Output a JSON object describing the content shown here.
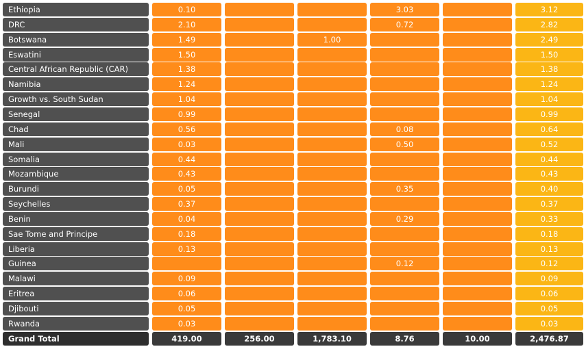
{
  "chart_data": {
    "type": "table",
    "colors": {
      "label_cell": "#505050",
      "value_cell": "#ff8c1a",
      "total_cell": "#fbb615",
      "grand_total_row": "#3a3a3a"
    },
    "rows": [
      {
        "name": "Ethiopia",
        "values": [
          "0.10",
          "",
          "",
          "3.03",
          "",
          "3.12"
        ]
      },
      {
        "name": "DRC",
        "values": [
          "2.10",
          "",
          "",
          "0.72",
          "",
          "2.82"
        ]
      },
      {
        "name": "Botswana",
        "values": [
          "1.49",
          "",
          "1.00",
          "",
          "",
          "2.49"
        ]
      },
      {
        "name": "Eswatini",
        "values": [
          "1.50",
          "",
          "",
          "",
          "",
          "1.50"
        ]
      },
      {
        "name": "Central African Republic (CAR)",
        "values": [
          "1.38",
          "",
          "",
          "",
          "",
          "1.38"
        ]
      },
      {
        "name": "Namibia",
        "values": [
          "1.24",
          "",
          "",
          "",
          "",
          "1.24"
        ]
      },
      {
        "name": "Growth vs. South Sudan",
        "values": [
          "1.04",
          "",
          "",
          "",
          "",
          "1.04"
        ]
      },
      {
        "name": "Senegal",
        "values": [
          "0.99",
          "",
          "",
          "",
          "",
          "0.99"
        ]
      },
      {
        "name": "Chad",
        "values": [
          "0.56",
          "",
          "",
          "0.08",
          "",
          "0.64"
        ]
      },
      {
        "name": "Mali",
        "values": [
          "0.03",
          "",
          "",
          "0.50",
          "",
          "0.52"
        ]
      },
      {
        "name": "Somalia",
        "values": [
          "0.44",
          "",
          "",
          "",
          "",
          "0.44"
        ]
      },
      {
        "name": "Mozambique",
        "values": [
          "0.43",
          "",
          "",
          "",
          "",
          "0.43"
        ]
      },
      {
        "name": "Burundi",
        "values": [
          "0.05",
          "",
          "",
          "0.35",
          "",
          "0.40"
        ]
      },
      {
        "name": "Seychelles",
        "values": [
          "0.37",
          "",
          "",
          "",
          "",
          "0.37"
        ]
      },
      {
        "name": "Benin",
        "values": [
          "0.04",
          "",
          "",
          "0.29",
          "",
          "0.33"
        ]
      },
      {
        "name": "Sae Tome and Principe",
        "values": [
          "0.18",
          "",
          "",
          "",
          "",
          "0.18"
        ]
      },
      {
        "name": "Liberia",
        "values": [
          "0.13",
          "",
          "",
          "",
          "",
          "0.13"
        ]
      },
      {
        "name": "Guinea",
        "values": [
          "",
          "",
          "",
          "0.12",
          "",
          "0.12"
        ]
      },
      {
        "name": "Malawi",
        "values": [
          "0.09",
          "",
          "",
          "",
          "",
          "0.09"
        ]
      },
      {
        "name": "Eritrea",
        "values": [
          "0.06",
          "",
          "",
          "",
          "",
          "0.06"
        ]
      },
      {
        "name": "Djibouti",
        "values": [
          "0.05",
          "",
          "",
          "",
          "",
          "0.05"
        ]
      },
      {
        "name": "Rwanda",
        "values": [
          "0.03",
          "",
          "",
          "",
          "",
          "0.03"
        ]
      }
    ],
    "grand_total": {
      "name": "Grand Total",
      "values": [
        "419.00",
        "256.00",
        "1,783.10",
        "8.76",
        "10.00",
        "2,476.87"
      ]
    }
  }
}
